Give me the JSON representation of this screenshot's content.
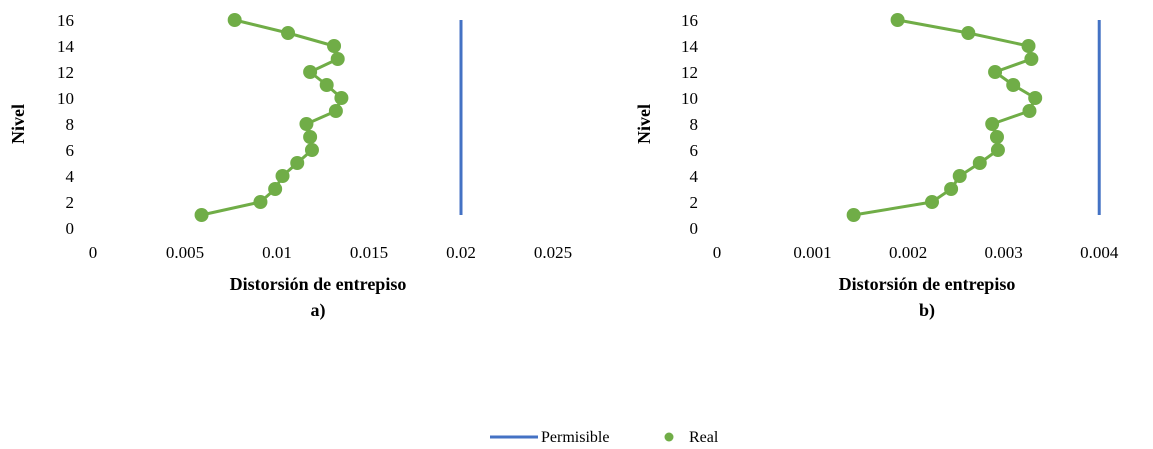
{
  "colors": {
    "permisible": "#4472C4",
    "real": "#70AD47",
    "axis": "#000000"
  },
  "legend": {
    "placement": "bottom",
    "items": [
      {
        "label": "Permisible",
        "kind": "line",
        "color": "#4472C4"
      },
      {
        "label": "Real",
        "kind": "marker",
        "color": "#70AD47"
      }
    ]
  },
  "chart_data": [
    {
      "type": "scatter",
      "panel_label": "a)",
      "xlabel": "Distorsión de entrepiso",
      "ylabel": "Nivel",
      "xlim": [
        0,
        0.025
      ],
      "ylim": [
        0,
        16
      ],
      "xticks": [
        0,
        0.005,
        0.01,
        0.015,
        0.02,
        0.025
      ],
      "xtick_labels": [
        "0",
        "0.005",
        "0.01",
        "0.015",
        "0.02",
        "0.025"
      ],
      "yticks": [
        0,
        2,
        4,
        6,
        8,
        10,
        12,
        14,
        16
      ],
      "ytick_labels": [
        "0",
        "2",
        "4",
        "6",
        "8",
        "10",
        "12",
        "14",
        "16"
      ],
      "grid": false,
      "series": [
        {
          "name": "Permisible",
          "style": "line",
          "x": [
            0.02,
            0.02
          ],
          "y": [
            1,
            16
          ]
        },
        {
          "name": "Real",
          "style": "line-marker",
          "x": [
            0.0059,
            0.0091,
            0.0099,
            0.0103,
            0.0111,
            0.0119,
            0.0118,
            0.0116,
            0.0132,
            0.0135,
            0.0127,
            0.0118,
            0.0133,
            0.0131,
            0.0106,
            0.0077
          ],
          "y": [
            1,
            2,
            3,
            4,
            5,
            6,
            7,
            8,
            9,
            10,
            11,
            12,
            13,
            14,
            15,
            16
          ]
        }
      ]
    },
    {
      "type": "scatter",
      "panel_label": "b)",
      "xlabel": "Distorsión de entrepiso",
      "ylabel": "Nivel",
      "xlim": [
        0,
        0.0045
      ],
      "ylim": [
        0,
        16
      ],
      "xticks": [
        0,
        0.001,
        0.002,
        0.003,
        0.004
      ],
      "xtick_labels": [
        "0",
        "0.001",
        "0.002",
        "0.003",
        "0.004"
      ],
      "yticks": [
        0,
        2,
        4,
        6,
        8,
        10,
        12,
        14,
        16
      ],
      "ytick_labels": [
        "0",
        "2",
        "4",
        "6",
        "8",
        "10",
        "12",
        "14",
        "16"
      ],
      "grid": false,
      "series": [
        {
          "name": "Permisible",
          "style": "line",
          "x": [
            0.004,
            0.004
          ],
          "y": [
            1,
            16
          ]
        },
        {
          "name": "Real",
          "style": "line-marker",
          "x": [
            0.00143,
            0.00225,
            0.00245,
            0.00254,
            0.00275,
            0.00294,
            0.00293,
            0.00288,
            0.00327,
            0.00333,
            0.0031,
            0.00291,
            0.00329,
            0.00326,
            0.00263,
            0.00189
          ],
          "y": [
            1,
            2,
            3,
            4,
            5,
            6,
            7,
            8,
            9,
            10,
            11,
            12,
            13,
            14,
            15,
            16
          ]
        }
      ]
    }
  ]
}
